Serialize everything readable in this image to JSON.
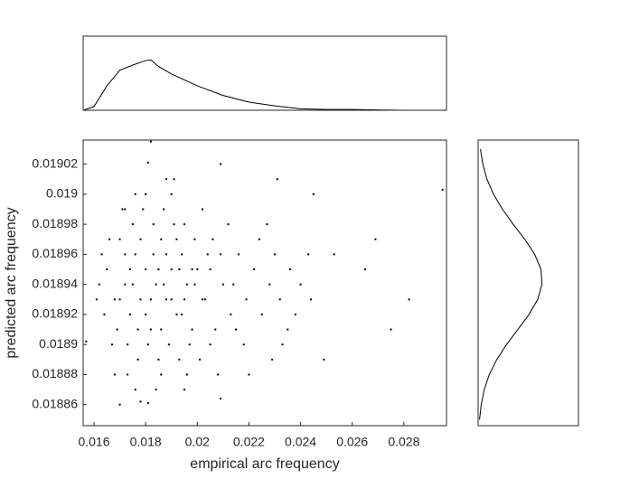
{
  "chart_data": [
    {
      "type": "line",
      "orientation": "vertical",
      "x": [
        0.01558,
        0.016,
        0.0165,
        0.017,
        0.0175,
        0.018,
        0.0182,
        0.0185,
        0.019,
        0.02,
        0.021,
        0.022,
        0.023,
        0.024,
        0.025,
        0.026,
        0.027,
        0.028,
        0.0296
      ],
      "values": [
        0.0,
        0.05,
        0.33,
        0.54,
        0.61,
        0.67,
        0.68,
        0.59,
        0.49,
        0.33,
        0.2,
        0.11,
        0.06,
        0.02,
        0.01,
        0.01,
        0.005,
        0,
        0
      ],
      "xlim": [
        0.01558,
        0.02965
      ],
      "ylim": [
        0,
        1
      ],
      "color": "#000000"
    },
    {
      "type": "scatter",
      "x": [
        0.0165,
        0.0168,
        0.017,
        0.0172,
        0.0174,
        0.0176,
        0.0178,
        0.018,
        0.0182,
        0.0184,
        0.0186,
        0.0188,
        0.019,
        0.0192,
        0.0194,
        0.0196,
        0.0198,
        0.02,
        0.0203,
        0.0206,
        0.0162,
        0.0164,
        0.0166,
        0.0169,
        0.0171,
        0.0173,
        0.0175,
        0.0177,
        0.0179,
        0.0181,
        0.0183,
        0.0185,
        0.0187,
        0.0189,
        0.0191,
        0.0193,
        0.0195,
        0.0197,
        0.0199,
        0.0201,
        0.0204,
        0.0207,
        0.021,
        0.0213,
        0.0216,
        0.0219,
        0.0222,
        0.0225,
        0.0228,
        0.0232,
        0.0236,
        0.024,
        0.0244,
        0.0235,
        0.023,
        0.0218,
        0.0212,
        0.0208,
        0.0202,
        0.0196,
        0.019,
        0.0186,
        0.018,
        0.0176,
        0.0172,
        0.0168,
        0.0163,
        0.0161,
        0.0167,
        0.0174,
        0.0178,
        0.0182,
        0.0186,
        0.019,
        0.0194,
        0.0198,
        0.0202,
        0.0205,
        0.0209,
        0.0214,
        0.017,
        0.0175,
        0.018,
        0.0185,
        0.0188,
        0.0192,
        0.0195,
        0.0199,
        0.0172,
        0.0177,
        0.0183,
        0.0187,
        0.0193,
        0.0173,
        0.0184,
        0.0195,
        0.0205,
        0.0215,
        0.0224,
        0.0233,
        0.0238,
        0.0243,
        0.022,
        0.0229,
        0.0176,
        0.0188,
        0.017,
        0.0178,
        0.0182,
        0.0295,
        0.0157,
        0.0181,
        0.0209,
        0.0181,
        0.0249,
        0.0269,
        0.0275,
        0.0282,
        0.0253,
        0.0265,
        0.0227,
        0.0245,
        0.0231,
        0.0209,
        0.0191
      ],
      "values": [
        0.01895,
        0.01893,
        0.01897,
        0.01894,
        0.01892,
        0.01896,
        0.01893,
        0.01895,
        0.01891,
        0.01894,
        0.01897,
        0.01893,
        0.01895,
        0.01892,
        0.01896,
        0.01894,
        0.01891,
        0.01895,
        0.01893,
        0.01897,
        0.01894,
        0.01892,
        0.01897,
        0.01891,
        0.01899,
        0.0189,
        0.01898,
        0.01889,
        0.01899,
        0.0189,
        0.01898,
        0.01889,
        0.01899,
        0.0189,
        0.01898,
        0.01889,
        0.01898,
        0.0189,
        0.01897,
        0.01889,
        0.01896,
        0.01891,
        0.01894,
        0.01892,
        0.01896,
        0.01893,
        0.01895,
        0.01892,
        0.01894,
        0.01893,
        0.01895,
        0.01894,
        0.01893,
        0.01891,
        0.01896,
        0.0189,
        0.01898,
        0.01888,
        0.01899,
        0.01888,
        0.019,
        0.01888,
        0.019,
        0.01887,
        0.01899,
        0.01888,
        0.01896,
        0.01893,
        0.0189,
        0.01895,
        0.01897,
        0.01893,
        0.01891,
        0.01893,
        0.01892,
        0.01895,
        0.01893,
        0.01895,
        0.01896,
        0.01894,
        0.01893,
        0.01894,
        0.01892,
        0.01895,
        0.01896,
        0.01897,
        0.01893,
        0.01894,
        0.01896,
        0.01891,
        0.01896,
        0.01894,
        0.01895,
        0.01888,
        0.01887,
        0.01887,
        0.0189,
        0.01891,
        0.01897,
        0.0189,
        0.01892,
        0.01896,
        0.01888,
        0.01889,
        0.019,
        0.01901,
        0.01886,
        0.018862,
        0.019035,
        0.019003,
        0.018902,
        0.019021,
        0.018864,
        0.018861,
        0.01889,
        0.01897,
        0.01891,
        0.01893,
        0.01896,
        0.01895,
        0.01898,
        0.019,
        0.01901,
        0.01902,
        0.01901
      ],
      "xlabel": "empirical arc frequency",
      "ylabel": "predicted arc frequency",
      "xlim": [
        0.01558,
        0.02965
      ],
      "ylim": [
        0.018846,
        0.019036
      ],
      "xticks": [
        0.016,
        0.018,
        0.02,
        0.022,
        0.024,
        0.026,
        0.028
      ],
      "yticks": [
        0.01886,
        0.01888,
        0.0189,
        0.01892,
        0.01894,
        0.01896,
        0.01898,
        0.019,
        0.01902
      ],
      "color": "#000000"
    },
    {
      "type": "line",
      "orientation": "horizontal",
      "x": [
        0.01885,
        0.01886,
        0.01887,
        0.01888,
        0.01889,
        0.0189,
        0.01891,
        0.01892,
        0.01893,
        0.01894,
        0.01895,
        0.01896,
        0.01897,
        0.01898,
        0.01899,
        0.019,
        0.01901,
        0.01902,
        0.01903
      ],
      "values": [
        0.014,
        0.031,
        0.061,
        0.111,
        0.186,
        0.283,
        0.396,
        0.507,
        0.594,
        0.637,
        0.626,
        0.564,
        0.465,
        0.35,
        0.243,
        0.153,
        0.088,
        0.047,
        0.023
      ],
      "xlim": [
        0.018846,
        0.019036
      ],
      "ylim": [
        0,
        1
      ],
      "color": "#000000"
    }
  ]
}
